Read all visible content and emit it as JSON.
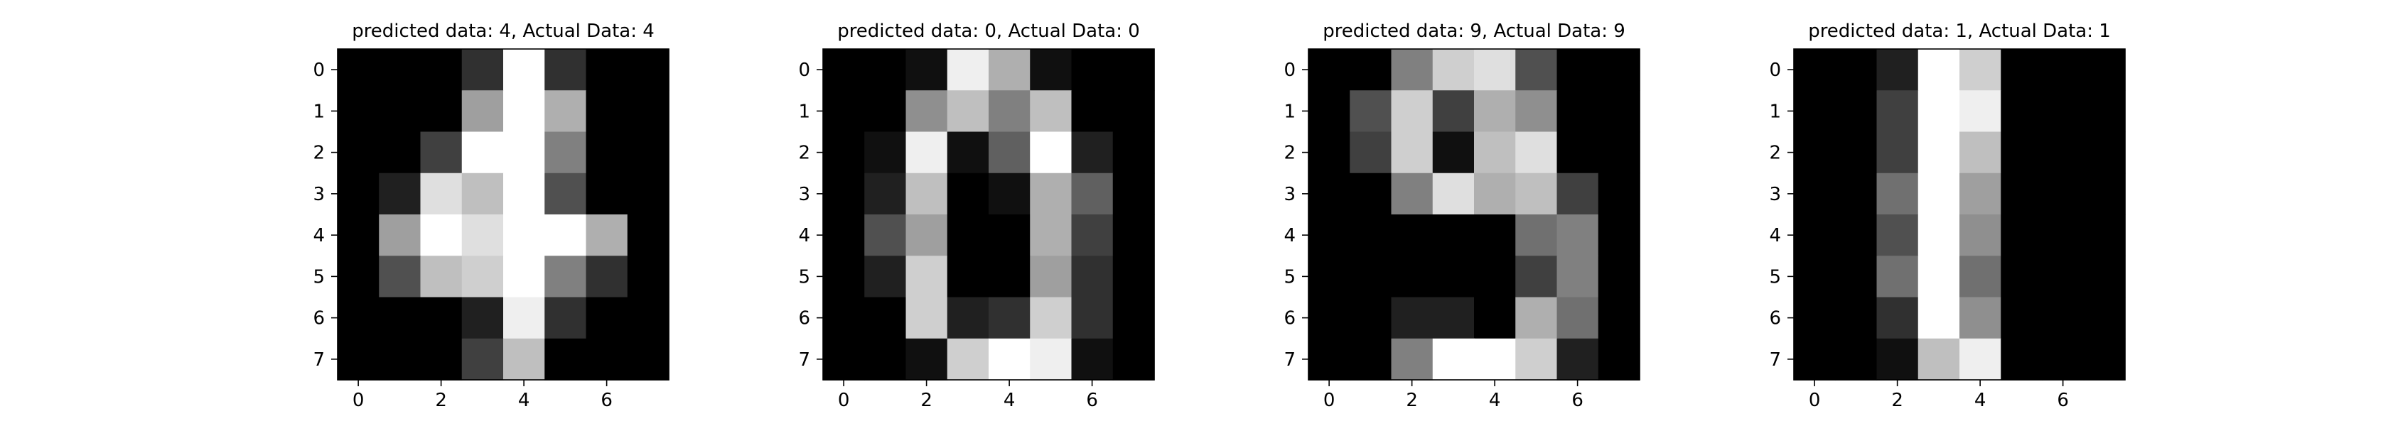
{
  "chart_data": [
    {
      "type": "heatmap",
      "title": "predicted data: 4, Actual Data: 4",
      "colormap": "gray",
      "xticks": [
        0,
        2,
        4,
        6
      ],
      "yticks": [
        0,
        1,
        2,
        3,
        4,
        5,
        6,
        7
      ],
      "vmax": 16,
      "values": [
        [
          0,
          0,
          0,
          3,
          16,
          3,
          0,
          0
        ],
        [
          0,
          0,
          0,
          10,
          16,
          11,
          0,
          0
        ],
        [
          0,
          0,
          4,
          16,
          16,
          8,
          0,
          0
        ],
        [
          0,
          2,
          14,
          12,
          16,
          5,
          0,
          0
        ],
        [
          0,
          10,
          16,
          14,
          16,
          16,
          11,
          0
        ],
        [
          0,
          5,
          12,
          13,
          16,
          8,
          3,
          0
        ],
        [
          0,
          0,
          0,
          2,
          15,
          3,
          0,
          0
        ],
        [
          0,
          0,
          0,
          4,
          12,
          0,
          0,
          0
        ]
      ]
    },
    {
      "type": "heatmap",
      "title": "predicted data: 0, Actual Data: 0",
      "colormap": "gray",
      "xticks": [
        0,
        2,
        4,
        6
      ],
      "yticks": [
        0,
        1,
        2,
        3,
        4,
        5,
        6,
        7
      ],
      "vmax": 16,
      "values": [
        [
          0,
          0,
          1,
          15,
          11,
          1,
          0,
          0
        ],
        [
          0,
          0,
          9,
          12,
          8,
          12,
          0,
          0
        ],
        [
          0,
          1,
          15,
          1,
          6,
          16,
          2,
          0
        ],
        [
          0,
          2,
          12,
          0,
          1,
          11,
          6,
          0
        ],
        [
          0,
          5,
          10,
          0,
          0,
          11,
          4,
          0
        ],
        [
          0,
          2,
          13,
          0,
          0,
          10,
          3,
          0
        ],
        [
          0,
          0,
          13,
          2,
          3,
          13,
          3,
          0
        ],
        [
          0,
          0,
          1,
          13,
          16,
          15,
          1,
          0
        ]
      ]
    },
    {
      "type": "heatmap",
      "title": "predicted data: 9, Actual Data: 9",
      "colormap": "gray",
      "xticks": [
        0,
        2,
        4,
        6
      ],
      "yticks": [
        0,
        1,
        2,
        3,
        4,
        5,
        6,
        7
      ],
      "vmax": 16,
      "values": [
        [
          0,
          0,
          8,
          13,
          14,
          5,
          0,
          0
        ],
        [
          0,
          5,
          13,
          4,
          11,
          9,
          0,
          0
        ],
        [
          0,
          4,
          13,
          1,
          12,
          14,
          0,
          0
        ],
        [
          0,
          0,
          8,
          14,
          11,
          12,
          4,
          0
        ],
        [
          0,
          0,
          0,
          0,
          0,
          7,
          8,
          0
        ],
        [
          0,
          0,
          0,
          0,
          0,
          4,
          8,
          0
        ],
        [
          0,
          0,
          2,
          2,
          0,
          11,
          7,
          0
        ],
        [
          0,
          0,
          8,
          16,
          16,
          13,
          2,
          0
        ]
      ]
    },
    {
      "type": "heatmap",
      "title": "predicted data: 1, Actual Data: 1",
      "colormap": "gray",
      "xticks": [
        0,
        2,
        4,
        6
      ],
      "yticks": [
        0,
        1,
        2,
        3,
        4,
        5,
        6,
        7
      ],
      "vmax": 16,
      "values": [
        [
          0,
          0,
          2,
          16,
          13,
          0,
          0,
          0
        ],
        [
          0,
          0,
          4,
          16,
          15,
          0,
          0,
          0
        ],
        [
          0,
          0,
          4,
          16,
          12,
          0,
          0,
          0
        ],
        [
          0,
          0,
          7,
          16,
          10,
          0,
          0,
          0
        ],
        [
          0,
          0,
          5,
          16,
          9,
          0,
          0,
          0
        ],
        [
          0,
          0,
          7,
          16,
          7,
          0,
          0,
          0
        ],
        [
          0,
          0,
          3,
          16,
          9,
          0,
          0,
          0
        ],
        [
          0,
          0,
          1,
          12,
          15,
          0,
          0,
          0
        ]
      ]
    }
  ]
}
